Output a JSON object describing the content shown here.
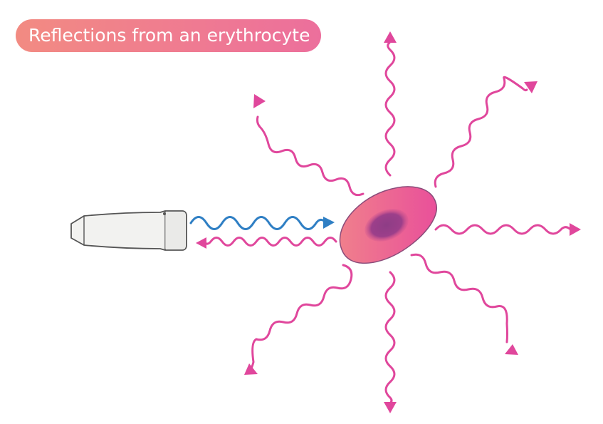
{
  "title": "Reflections from an erythrocyte",
  "colors": {
    "incident_wave": "#2f7fc4",
    "scattered_wave": "#e0479c",
    "cell_outer_left": "#f07f8c",
    "cell_outer_right": "#e9509a",
    "cell_nucleus": "#8e3d86",
    "probe_body": "#f2f2f0",
    "probe_stroke": "#555555"
  },
  "elements": {
    "probe": "ultrasound-transducer-icon",
    "cell": "erythrocyte-icon",
    "incident": "incident-wave-arrow",
    "reflected": "reflected-wave-arrow",
    "scattered": "scattered-wave-arrows"
  }
}
